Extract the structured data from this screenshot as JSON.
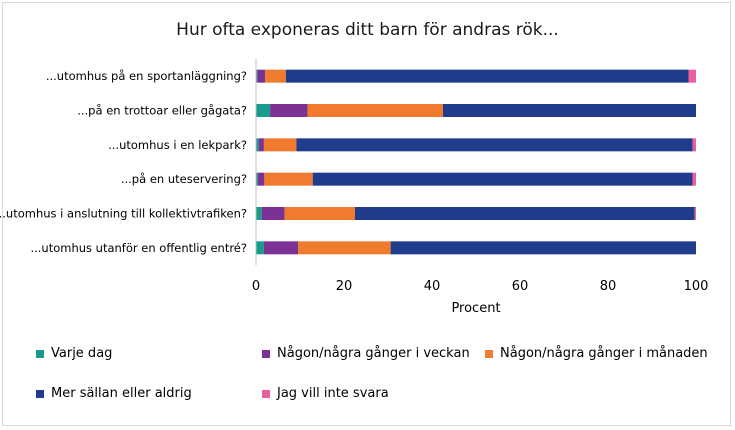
{
  "chart_data": {
    "type": "bar",
    "orientation": "horizontal",
    "stacked": true,
    "title": "Hur ofta exponeras ditt barn för andras rök...",
    "xlabel": "Procent",
    "ylabel": "",
    "xlim": [
      0,
      100
    ],
    "xticks": [
      0,
      20,
      40,
      60,
      80,
      100
    ],
    "grid": false,
    "legend_position": "bottom",
    "categories": [
      "...utomhus på en sportanläggning?",
      "...på en trottoar eller gågata?",
      "...utomhus i en lekpark?",
      "...på en uteservering?",
      "...utomhus i anslutning till kollektivtrafiken?",
      "...utomhus utanför en offentlig entré?"
    ],
    "series": [
      {
        "name": "Varje dag",
        "color": "#1a9c8c",
        "values": [
          0.3,
          3.2,
          0.6,
          0.4,
          1.3,
          1.8
        ]
      },
      {
        "name": "Någon/några gånger i veckan",
        "color": "#7b3294",
        "values": [
          1.8,
          8.5,
          1.2,
          1.5,
          5.2,
          7.8
        ]
      },
      {
        "name": "Någon/några gånger i månaden",
        "color": "#f07b2e",
        "values": [
          4.7,
          30.8,
          7.4,
          11.0,
          16.0,
          21.0
        ]
      },
      {
        "name": "Mer sällan eller aldrig",
        "color": "#203c8c",
        "values": [
          91.5,
          57.5,
          90.0,
          86.3,
          77.2,
          69.4
        ]
      },
      {
        "name": "Jag vill inte svara",
        "color": "#e8619c",
        "values": [
          1.7,
          0.0,
          0.8,
          0.8,
          0.3,
          0.0
        ]
      }
    ]
  }
}
